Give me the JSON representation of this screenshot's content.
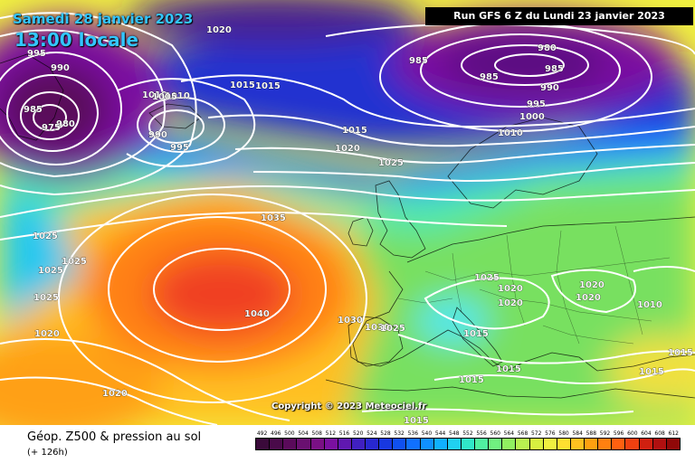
{
  "title": {
    "date": "Samedi 28 janvier 2023",
    "time": "13:00 locale"
  },
  "run_info": "Run GFS 6 Z du Lundi 23 janvier 2023",
  "copyright": "Copyright © 2023 Meteociel.fr",
  "footer": {
    "title": "Géop. Z500 & pression au sol",
    "subtitle": "(+ 126h)"
  },
  "scale": {
    "labels": [
      "492",
      "496",
      "500",
      "504",
      "508",
      "512",
      "516",
      "520",
      "524",
      "528",
      "532",
      "536",
      "540",
      "544",
      "548",
      "552",
      "556",
      "560",
      "564",
      "568",
      "572",
      "576",
      "580",
      "584",
      "588",
      "592",
      "596",
      "600",
      "604",
      "608",
      "612"
    ],
    "colors": [
      "#3a0a3a",
      "#4a0a4a",
      "#5a0a5a",
      "#6a1070",
      "#7a1085",
      "#7a10a0",
      "#6018b0",
      "#4020c0",
      "#2828d0",
      "#1838e0",
      "#1050f0",
      "#1070ff",
      "#1090ff",
      "#10b0ff",
      "#20d0f0",
      "#30e8c8",
      "#50f0a0",
      "#70f080",
      "#90f060",
      "#b8f050",
      "#d8f040",
      "#f0f040",
      "#ffe030",
      "#ffc020",
      "#ffa010",
      "#ff8010",
      "#ff6010",
      "#f04010",
      "#d02010",
      "#b01010",
      "#900808"
    ]
  },
  "pressure_labels": [
    {
      "text": "1020"
    },
    {
      "text": "995"
    },
    {
      "text": "990"
    },
    {
      "text": "985"
    },
    {
      "text": "980"
    },
    {
      "text": "975"
    },
    {
      "text": "1010"
    },
    {
      "text": "1010"
    },
    {
      "text": "1005"
    },
    {
      "text": "990"
    },
    {
      "text": "995"
    },
    {
      "text": "1015"
    },
    {
      "text": "1015"
    },
    {
      "text": "1015"
    },
    {
      "text": "1020"
    },
    {
      "text": "1025"
    },
    {
      "text": "985"
    },
    {
      "text": "985"
    },
    {
      "text": "980"
    },
    {
      "text": "985"
    },
    {
      "text": "990"
    },
    {
      "text": "995"
    },
    {
      "text": "1000"
    },
    {
      "text": "1010"
    },
    {
      "text": "1035"
    },
    {
      "text": "1040"
    },
    {
      "text": "1025"
    },
    {
      "text": "1025"
    },
    {
      "text": "1025"
    },
    {
      "text": "1025"
    },
    {
      "text": "1020"
    },
    {
      "text": "1020"
    },
    {
      "text": "1030"
    },
    {
      "text": "1030"
    },
    {
      "text": "1025"
    },
    {
      "text": "1025"
    },
    {
      "text": "1020"
    },
    {
      "text": "1020"
    },
    {
      "text": "1020"
    },
    {
      "text": "1020"
    },
    {
      "text": "1010"
    },
    {
      "text": "1015"
    },
    {
      "text": "1015"
    },
    {
      "text": "1015"
    },
    {
      "text": "1015"
    },
    {
      "text": "1015"
    },
    {
      "text": "1015"
    }
  ]
}
